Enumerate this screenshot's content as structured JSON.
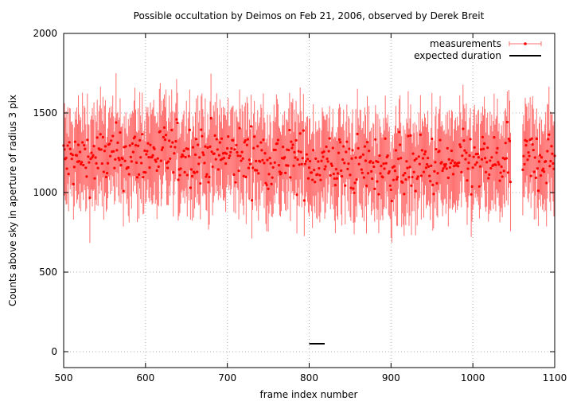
{
  "chart_data": {
    "type": "scatter",
    "title": "Possible occultation by Deimos on Feb 21, 2006, observed by Derek Breit",
    "xlabel": "frame index number",
    "ylabel": "Counts above sky in aperture of radius 3 pix",
    "xlim": [
      500,
      1100
    ],
    "ylim": [
      -100,
      2000
    ],
    "x_ticks": [
      "500",
      "600",
      "700",
      "800",
      "900",
      "1000",
      "1100"
    ],
    "y_ticks": [
      "0",
      "500",
      "1000",
      "1500",
      "2000"
    ],
    "grid": true,
    "legend_position": "top-right",
    "series": [
      {
        "name": "measurements",
        "style": "points-with-errorbars",
        "color": "#ff0000",
        "errorbar_color": "#ff7070",
        "frame_start": 500,
        "frame_end": 1100,
        "frame_step": 1,
        "missing_frames": [
          1047,
          1060
        ],
        "values_summary": {
          "typical": 1200,
          "min": 640,
          "max": 1600,
          "typical_error": 250
        }
      },
      {
        "name": "expected duration",
        "style": "line",
        "color": "#000000",
        "x": [
          800,
          819
        ],
        "y": [
          50,
          50
        ]
      }
    ]
  }
}
